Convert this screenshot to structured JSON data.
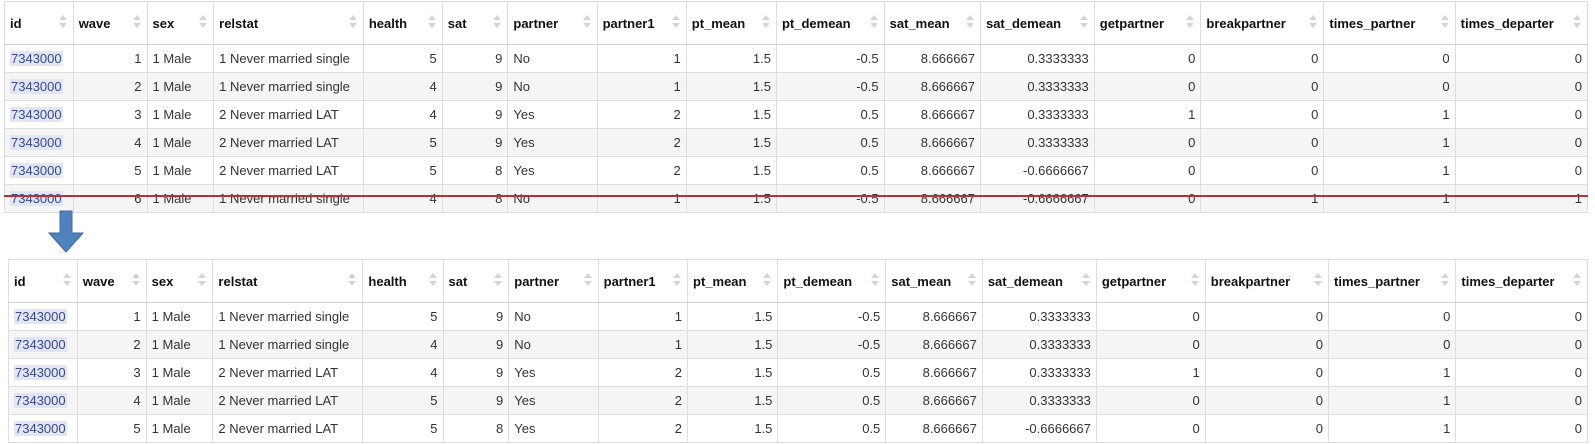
{
  "columns": [
    "id",
    "wave",
    "sex",
    "relstat",
    "health",
    "sat",
    "partner",
    "partner1",
    "pt_mean",
    "pt_demean",
    "sat_mean",
    "sat_demean",
    "getpartner",
    "breakpartner",
    "times_partner",
    "times_departer"
  ],
  "column_align": [
    "txt",
    "num",
    "txt",
    "txt",
    "num",
    "num",
    "txt",
    "num",
    "num",
    "num",
    "num",
    "num",
    "num",
    "num",
    "num",
    "num"
  ],
  "top_rows": [
    [
      "7343000",
      "1",
      "1 Male",
      "1 Never married single",
      "5",
      "9",
      "No",
      "1",
      "1.5",
      "-0.5",
      "8.666667",
      "0.3333333",
      "0",
      "0",
      "0",
      "0"
    ],
    [
      "7343000",
      "2",
      "1 Male",
      "1 Never married single",
      "4",
      "9",
      "No",
      "1",
      "1.5",
      "-0.5",
      "8.666667",
      "0.3333333",
      "0",
      "0",
      "0",
      "0"
    ],
    [
      "7343000",
      "3",
      "1 Male",
      "2 Never married LAT",
      "4",
      "9",
      "Yes",
      "2",
      "1.5",
      "0.5",
      "8.666667",
      "0.3333333",
      "1",
      "0",
      "1",
      "0"
    ],
    [
      "7343000",
      "4",
      "1 Male",
      "2 Never married LAT",
      "5",
      "9",
      "Yes",
      "2",
      "1.5",
      "0.5",
      "8.666667",
      "0.3333333",
      "0",
      "0",
      "1",
      "0"
    ],
    [
      "7343000",
      "5",
      "1 Male",
      "2 Never married LAT",
      "5",
      "8",
      "Yes",
      "2",
      "1.5",
      "0.5",
      "8.666667",
      "-0.6666667",
      "0",
      "0",
      "1",
      "0"
    ],
    [
      "7343000",
      "6",
      "1 Male",
      "1 Never married single",
      "4",
      "8",
      "No",
      "1",
      "1.5",
      "-0.5",
      "8.666667",
      "-0.6666667",
      "0",
      "1",
      "1",
      "1"
    ]
  ],
  "bottom_rows": [
    [
      "7343000",
      "1",
      "1 Male",
      "1 Never married single",
      "5",
      "9",
      "No",
      "1",
      "1.5",
      "-0.5",
      "8.666667",
      "0.3333333",
      "0",
      "0",
      "0",
      "0"
    ],
    [
      "7343000",
      "2",
      "1 Male",
      "1 Never married single",
      "4",
      "9",
      "No",
      "1",
      "1.5",
      "-0.5",
      "8.666667",
      "0.3333333",
      "0",
      "0",
      "0",
      "0"
    ],
    [
      "7343000",
      "3",
      "1 Male",
      "2 Never married LAT",
      "4",
      "9",
      "Yes",
      "2",
      "1.5",
      "0.5",
      "8.666667",
      "0.3333333",
      "1",
      "0",
      "1",
      "0"
    ],
    [
      "7343000",
      "4",
      "1 Male",
      "2 Never married LAT",
      "5",
      "9",
      "Yes",
      "2",
      "1.5",
      "0.5",
      "8.666667",
      "0.3333333",
      "0",
      "0",
      "1",
      "0"
    ],
    [
      "7343000",
      "5",
      "1 Male",
      "2 Never married LAT",
      "5",
      "8",
      "Yes",
      "2",
      "1.5",
      "0.5",
      "8.666667",
      "-0.6666667",
      "0",
      "0",
      "1",
      "0"
    ]
  ],
  "strikethrough_row_index": 5,
  "colors": {
    "strike": "#b53232",
    "arrow": "#4f81bd",
    "id_highlight": "#e2e6f4"
  },
  "icons": {
    "sort": "sort-arrows-icon",
    "arrow": "arrow-down-icon"
  }
}
